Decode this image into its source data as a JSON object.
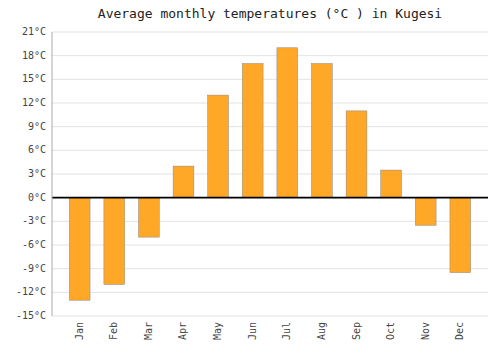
{
  "chart_data": {
    "type": "bar",
    "title": "Average monthly temperatures (°C ) in Kugesi",
    "categories": [
      "Jan",
      "Feb",
      "Mar",
      "Apr",
      "May",
      "Jun",
      "Jul",
      "Aug",
      "Sep",
      "Oct",
      "Nov",
      "Dec"
    ],
    "values": [
      -13,
      -11,
      -5,
      4,
      13,
      17,
      19,
      17,
      11,
      3.5,
      -3.5,
      -9.5
    ],
    "color": "#FFA726",
    "ylim": [
      -15,
      21
    ],
    "yticks": [
      {
        "value": -15,
        "label": "-15°C"
      },
      {
        "value": -12,
        "label": "-12°C"
      },
      {
        "value": -9,
        "label": "-9°C"
      },
      {
        "value": -6,
        "label": "-6°C"
      },
      {
        "value": -3,
        "label": "-3°C"
      },
      {
        "value": 0,
        "label": "0°C"
      },
      {
        "value": 3,
        "label": "3°C"
      },
      {
        "value": 6,
        "label": "6°C"
      },
      {
        "value": 9,
        "label": "9°C"
      },
      {
        "value": 12,
        "label": "12°C"
      },
      {
        "value": 15,
        "label": "15°C"
      },
      {
        "value": 18,
        "label": "18°C"
      },
      {
        "value": 21,
        "label": "21°C"
      }
    ],
    "grid": true
  }
}
